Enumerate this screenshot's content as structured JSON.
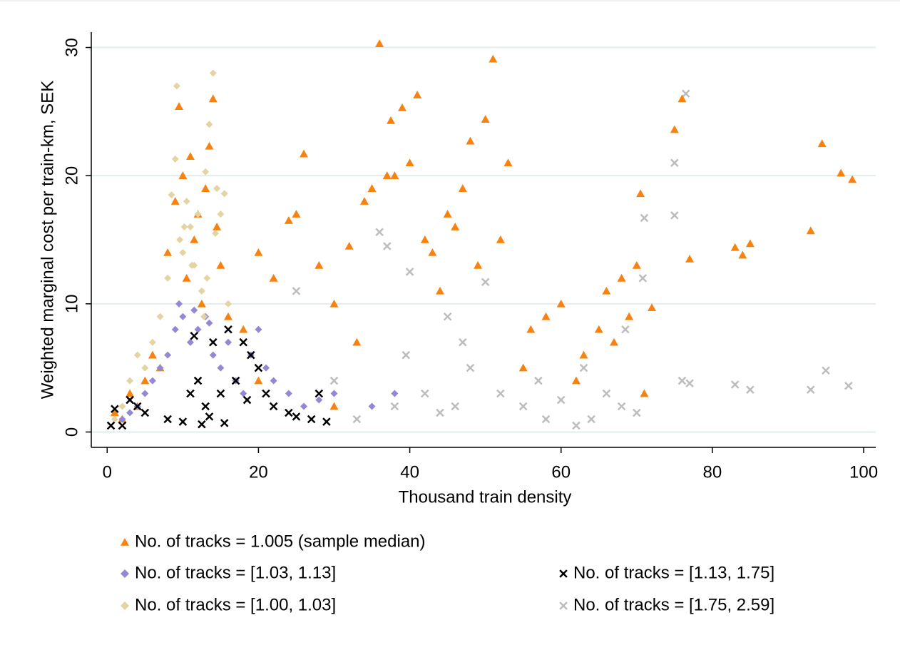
{
  "chart_data": {
    "type": "scatter",
    "x_label": "Thousand train density",
    "y_label": "Weighted marginal cost per train-km, SEK",
    "xlim": [
      -2.1,
      101.6
    ],
    "ylim": [
      -1.2,
      31.2
    ],
    "xticks": [
      0,
      20,
      40,
      60,
      80,
      100
    ],
    "yticks": [
      0,
      10,
      20,
      30
    ],
    "grid": true,
    "series": [
      {
        "name": "No. of tracks = 1.005 (sample median)",
        "color": "#f7820f",
        "marker": "triangle",
        "x": [
          9.5,
          10,
          11,
          12,
          13,
          13.5,
          14,
          14.5,
          9,
          8,
          10.5,
          11.5,
          12.5,
          15,
          16,
          18,
          20,
          22,
          24,
          25,
          26,
          28,
          30,
          32,
          33,
          34,
          35,
          36,
          37,
          37.5,
          38,
          39,
          40,
          41,
          42,
          43,
          44,
          45,
          46,
          47,
          48,
          49,
          50,
          51,
          52,
          53,
          55,
          56,
          58,
          60,
          62,
          63,
          65,
          66,
          67,
          68,
          69,
          70,
          70.5,
          71,
          72,
          75,
          76,
          77,
          83,
          84,
          85,
          93,
          94.5,
          97,
          98.5,
          3,
          5,
          7,
          2,
          4,
          6,
          1,
          20,
          30
        ],
        "values": [
          25.4,
          20,
          21.5,
          17,
          19,
          22.3,
          26,
          16,
          18,
          14,
          12,
          15,
          10,
          13,
          9,
          8,
          14,
          12,
          16.5,
          17,
          21.7,
          13,
          10,
          14.5,
          7,
          18,
          19,
          30.3,
          20,
          24.3,
          20,
          25.3,
          21,
          26.3,
          15,
          14,
          11,
          17,
          16,
          19,
          22.7,
          13,
          24.4,
          29.1,
          15,
          21,
          5,
          8,
          9,
          10,
          4,
          6,
          8,
          11,
          7,
          12,
          9,
          13,
          18.6,
          3,
          9.7,
          23.6,
          26,
          13.5,
          14.4,
          13.8,
          14.7,
          15.7,
          22.5,
          20.2,
          19.7,
          3,
          4,
          5,
          1,
          2,
          6,
          1.5,
          4,
          2
        ]
      },
      {
        "name": "No. of tracks = [1.03, 1.13]",
        "color": "#9388d3",
        "marker": "diamond",
        "x": [
          2,
          3,
          4,
          5,
          6,
          7,
          8,
          9,
          10,
          11,
          12,
          13,
          14,
          15,
          16,
          17,
          18,
          19,
          20,
          21,
          22,
          24,
          26,
          28,
          30,
          35,
          38,
          9.5,
          11.5,
          13.5
        ],
        "values": [
          1,
          1.5,
          2,
          3,
          4,
          5,
          6,
          8,
          9,
          7,
          8,
          9,
          6,
          5,
          7,
          4,
          3,
          6,
          8,
          5,
          4,
          3,
          2,
          2.5,
          3,
          2,
          3,
          10,
          9.5,
          8.5
        ]
      },
      {
        "name": "No. of tracks = [1.00, 1.03]",
        "color": "#e3d5a3",
        "marker": "diamond",
        "x": [
          1,
          2,
          3,
          4,
          5,
          6,
          7,
          8,
          9,
          9.2,
          10,
          10.5,
          11,
          11.5,
          12,
          12.5,
          13,
          13.5,
          14,
          14.5,
          15,
          15.5,
          16,
          9.6,
          11.2,
          13.2,
          14.3,
          8.5,
          10.2,
          12.8
        ],
        "values": [
          1,
          2,
          4,
          6,
          5,
          7,
          9,
          12,
          21.3,
          27,
          14,
          18,
          16,
          13,
          17,
          11,
          20.3,
          24,
          28,
          19,
          17,
          18.6,
          10,
          15,
          13,
          12,
          15.5,
          18.5,
          16,
          9
        ]
      },
      {
        "name": "No. of tracks = [1.13, 1.75]",
        "color": "#000000",
        "marker": "x",
        "x": [
          0.5,
          1,
          2,
          3,
          4,
          5,
          8,
          10,
          11,
          12,
          13,
          14,
          15,
          16,
          17,
          18,
          19,
          20,
          21,
          22,
          24,
          25,
          27,
          28,
          29,
          12.5,
          13.5,
          11.5,
          18.5,
          15.5
        ],
        "values": [
          0.5,
          1.8,
          0.5,
          2.5,
          2,
          1.5,
          1,
          0.8,
          3,
          4,
          2,
          7,
          3,
          8,
          4,
          7,
          6,
          5,
          3,
          2,
          1.5,
          1.2,
          1,
          3,
          0.8,
          0.6,
          1.2,
          7.5,
          2.5,
          0.7
        ]
      },
      {
        "name": "No. of tracks = [1.75, 2.59]",
        "color": "#bdbdbd",
        "marker": "x",
        "x": [
          20,
          25,
          30,
          33,
          36,
          38,
          40,
          42,
          44,
          46,
          48,
          50,
          52,
          55,
          58,
          60,
          62,
          64,
          66,
          68,
          70,
          71,
          75,
          76,
          77,
          83,
          85,
          93,
          95,
          98,
          37,
          39.5,
          47,
          57,
          68.5,
          75,
          76.5,
          70.8,
          63,
          45
        ],
        "values": [
          5,
          11,
          4,
          1,
          15.6,
          2,
          12.5,
          3,
          1.5,
          2,
          5,
          11.7,
          3,
          2,
          1,
          2.5,
          0.5,
          1,
          3,
          2,
          1.5,
          16.7,
          21,
          4,
          3.8,
          3.7,
          3.3,
          3.3,
          4.8,
          3.6,
          14.5,
          6,
          7,
          4,
          8,
          16.9,
          26.4,
          12,
          5,
          9
        ]
      }
    ]
  }
}
